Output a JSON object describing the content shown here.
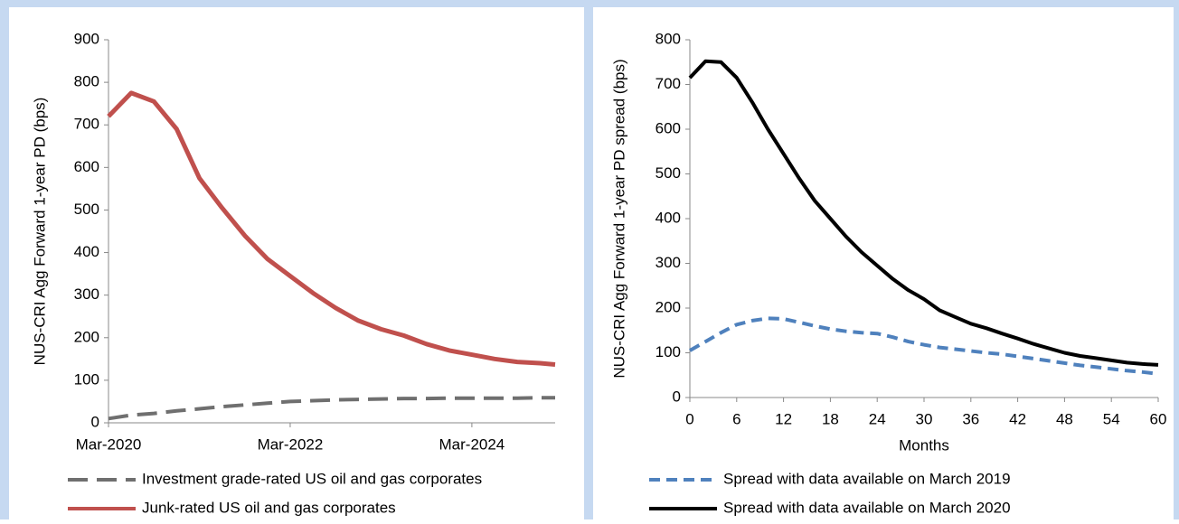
{
  "chart_data": [
    {
      "type": "line",
      "ylabel": "NUS-CRI Agg Forward 1-year PD (bps)",
      "x": [
        "2020-03",
        "2020-06",
        "2020-09",
        "2020-12",
        "2021-03",
        "2021-06",
        "2021-09",
        "2021-12",
        "2022-03",
        "2022-06",
        "2022-09",
        "2022-12",
        "2023-03",
        "2023-06",
        "2023-09",
        "2023-12",
        "2024-03",
        "2024-06",
        "2024-09",
        "2024-12",
        "2025-02"
      ],
      "xlim": [
        "2020-03",
        "2025-02"
      ],
      "xticks": [
        {
          "value": "2020-03",
          "label": "Mar-2020"
        },
        {
          "value": "2022-03",
          "label": "Mar-2022"
        },
        {
          "value": "2024-03",
          "label": "Mar-2024"
        }
      ],
      "ylim": [
        0,
        900
      ],
      "yticks": [
        0,
        100,
        200,
        300,
        400,
        500,
        600,
        700,
        800,
        900
      ],
      "series": [
        {
          "name": "Investment grade-rated US oil and gas corporates",
          "color": "#6f6f6f",
          "line_style": "dashed",
          "values": [
            10,
            18,
            22,
            28,
            33,
            38,
            42,
            46,
            50,
            52,
            54,
            55,
            56,
            57,
            57,
            58,
            58,
            58,
            58,
            59,
            59
          ]
        },
        {
          "name": "Junk-rated US oil and gas corporates",
          "color": "#c0504d",
          "line_style": "solid",
          "values": [
            720,
            775,
            755,
            690,
            575,
            505,
            440,
            385,
            345,
            305,
            270,
            240,
            220,
            205,
            185,
            170,
            160,
            150,
            143,
            140,
            137
          ]
        }
      ]
    },
    {
      "type": "line",
      "xlabel": "Months",
      "ylabel": "NUS-CRI Agg Forward 1-year PD spread (bps)",
      "x": [
        0,
        2,
        4,
        6,
        8,
        10,
        12,
        14,
        16,
        18,
        20,
        22,
        24,
        26,
        28,
        30,
        32,
        34,
        36,
        38,
        40,
        42,
        44,
        46,
        48,
        50,
        52,
        54,
        56,
        58,
        60
      ],
      "xlim": [
        0,
        60
      ],
      "xticks": [
        0,
        6,
        12,
        18,
        24,
        30,
        36,
        42,
        48,
        54,
        60
      ],
      "ylim": [
        0,
        800
      ],
      "yticks": [
        0,
        100,
        200,
        300,
        400,
        500,
        600,
        700,
        800
      ],
      "series": [
        {
          "name": "Spread with data available on March 2019",
          "color": "#4f81bd",
          "line_style": "dashed",
          "values": [
            105,
            125,
            145,
            163,
            172,
            177,
            176,
            168,
            160,
            153,
            148,
            145,
            143,
            135,
            125,
            118,
            112,
            108,
            104,
            100,
            97,
            92,
            87,
            82,
            77,
            72,
            68,
            64,
            60,
            57,
            53
          ]
        },
        {
          "name": "Spread with data available on March 2020",
          "color": "#000000",
          "line_style": "solid",
          "values": [
            715,
            752,
            750,
            715,
            660,
            600,
            545,
            490,
            440,
            400,
            360,
            325,
            295,
            265,
            240,
            220,
            195,
            180,
            165,
            155,
            143,
            132,
            120,
            110,
            100,
            93,
            88,
            83,
            78,
            75,
            73
          ]
        }
      ]
    }
  ]
}
